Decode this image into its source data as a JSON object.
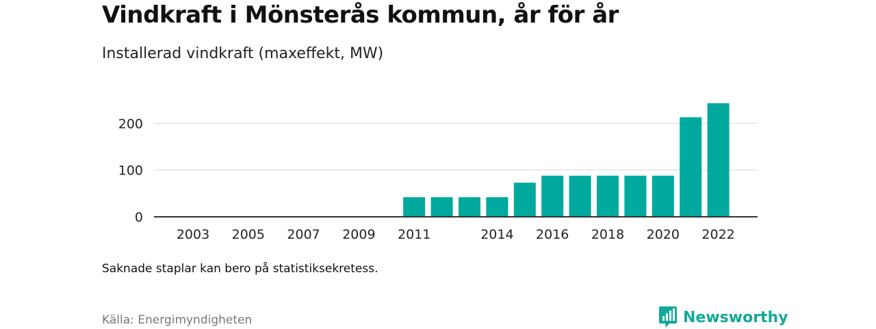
{
  "header": {
    "title": "Vindkraft i Mönsterås kommun, år för år",
    "subtitle": "Installerad vindkraft (maxeffekt, MW)"
  },
  "footer": {
    "note": "Saknade staplar kan bero på statistiksekretess.",
    "source": "Källa: Energimyndigheten",
    "brand": "Newsworthy"
  },
  "colors": {
    "bar": "#00a99d",
    "brand": "#14a89c",
    "grid": "#d9d9d9",
    "axis": "#333333"
  },
  "chart_data": {
    "type": "bar",
    "title": "Vindkraft i Mönsterås kommun, år för år",
    "subtitle": "Installerad vindkraft (maxeffekt, MW)",
    "xlabel": "",
    "ylabel": "",
    "categories": [
      "2003",
      "2004",
      "2005",
      "2006",
      "2007",
      "2008",
      "2009",
      "2010",
      "2011",
      "2012",
      "2013",
      "2014",
      "2015",
      "2016",
      "2017",
      "2018",
      "2019",
      "2020",
      "2021",
      "2022"
    ],
    "x_tick_labels": [
      "2003",
      "2005",
      "2007",
      "2009",
      "2011",
      "2014",
      "2016",
      "2018",
      "2020",
      "2022"
    ],
    "values": [
      null,
      null,
      null,
      null,
      null,
      null,
      null,
      null,
      42,
      42,
      42,
      42,
      73,
      88,
      88,
      88,
      88,
      88,
      213,
      243
    ],
    "y_ticks": [
      0,
      100,
      200
    ],
    "ylim": [
      0,
      250
    ],
    "grid": true,
    "legend": "none"
  }
}
